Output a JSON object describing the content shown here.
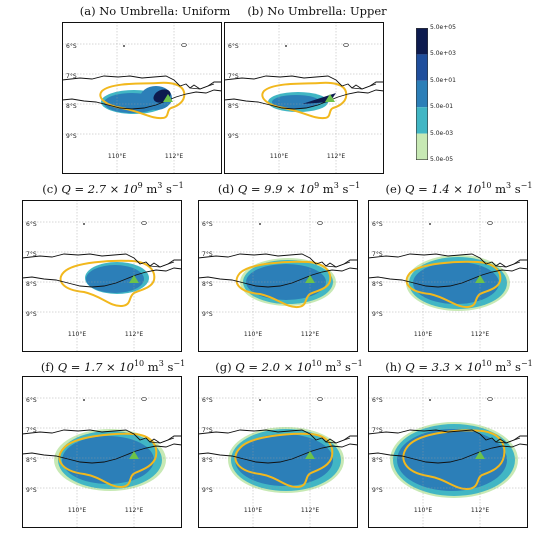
{
  "panels": [
    {
      "id": "a",
      "title": "(a) No Umbrella: Uniform",
      "plume": "uniform"
    },
    {
      "id": "b",
      "title": "(b) No Umbrella: Upper",
      "plume": "upper"
    },
    {
      "id": "c",
      "title_pre": "(c) ",
      "title_q": "Q = 2.7 × 10",
      "title_exp": "9",
      "title_units": " m",
      "title_u3": "3",
      "title_s": " s",
      "title_sm1": "−1",
      "plume": "q1"
    },
    {
      "id": "d",
      "title_pre": "(d) ",
      "title_q": "Q = 9.9 × 10",
      "title_exp": "9",
      "title_units": " m",
      "title_u3": "3",
      "title_s": " s",
      "title_sm1": "−1",
      "plume": "q2"
    },
    {
      "id": "e",
      "title_pre": "(e) ",
      "title_q": "Q = 1.4 × 10",
      "title_exp": "10",
      "title_units": " m",
      "title_u3": "3",
      "title_s": " s",
      "title_sm1": "−1",
      "plume": "q3"
    },
    {
      "id": "f",
      "title_pre": "(f) ",
      "title_q": "Q = 1.7 × 10",
      "title_exp": "10",
      "title_units": " m",
      "title_u3": "3",
      "title_s": " s",
      "title_sm1": "−1",
      "plume": "q4"
    },
    {
      "id": "g",
      "title_pre": "(g) ",
      "title_q": "Q = 2.0 × 10",
      "title_exp": "10",
      "title_units": " m",
      "title_u3": "3",
      "title_s": " s",
      "title_sm1": "−1",
      "plume": "q5"
    },
    {
      "id": "h",
      "title_pre": "(h) ",
      "title_q": "Q = 3.3 × 10",
      "title_exp": "10",
      "title_units": " m",
      "title_u3": "3",
      "title_s": " s",
      "title_sm1": "−1",
      "plume": "q6"
    }
  ],
  "lat_ticks": [
    "6°S",
    "7°S",
    "8°S",
    "9°S"
  ],
  "lon_ticks": [
    "110°E",
    "112°E"
  ],
  "colorbar": {
    "labels": [
      "5.0e+05",
      "5.0e+03",
      "5.0e+01",
      "5.0e-01",
      "5.0e-03",
      "5.0e-05"
    ],
    "colors": [
      "#0d1b4f",
      "#1f4e9c",
      "#2c7fb8",
      "#41b6c4",
      "#c7e9b4",
      "#ffffd9"
    ]
  },
  "colors": {
    "land": "#111111",
    "outline": "#f2b81d",
    "volcano": "#6cc24a",
    "dark": "#0d1b4f",
    "deep": "#2159a6",
    "mid": "#2c7fb8",
    "teal": "#41b6c4",
    "light": "#c7e9b4"
  }
}
